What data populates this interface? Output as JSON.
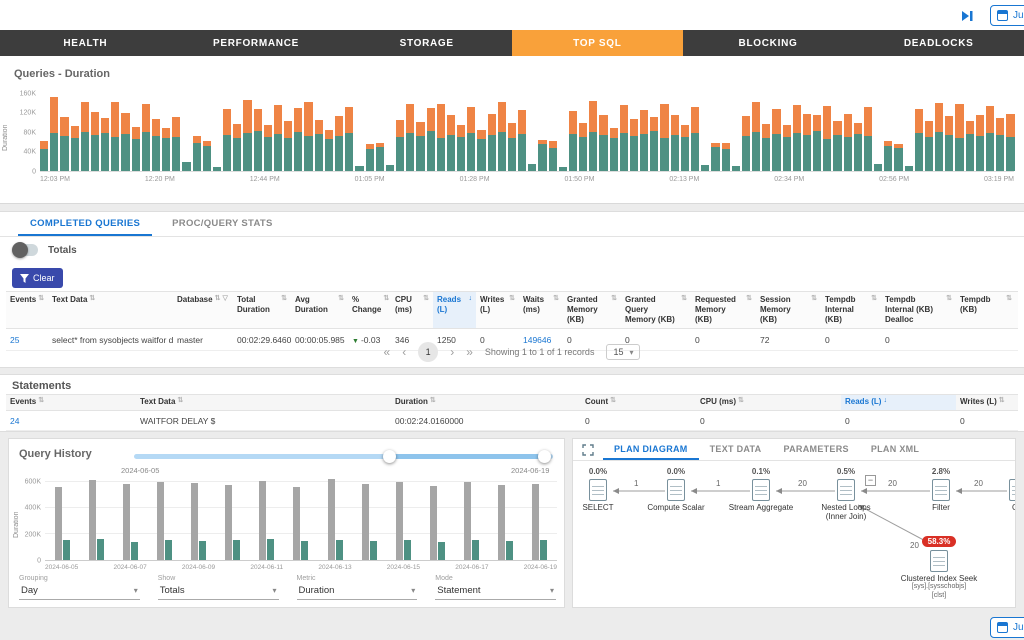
{
  "icons": {
    "sort_icon": "⇅",
    "sorted_icon": "↓",
    "filter_icon": "▽",
    "caret_icon": "▾",
    "minus_icon": "−",
    "change_down_icon": "▼"
  },
  "topbar": {
    "date_button_label": "Jun"
  },
  "nav": {
    "tabs": [
      "HEALTH",
      "PERFORMANCE",
      "STORAGE",
      "TOP SQL",
      "BLOCKING",
      "DEADLOCKS"
    ],
    "active_tab": "TOP SQL"
  },
  "duration_chart": {
    "type": "bar",
    "title": "Queries - Duration",
    "ylabel": "Duration",
    "y_ticks": [
      "160K",
      "120K",
      "80K",
      "40K",
      "0"
    ],
    "x_ticks": [
      "12:03 PM",
      "12:20 PM",
      "12:44 PM",
      "01:05 PM",
      "01:28 PM",
      "01:50 PM",
      "02:13 PM",
      "02:34 PM",
      "02:56 PM",
      "03:19 PM"
    ],
    "ymax_k": 176,
    "series": [
      {
        "name": "series-1",
        "color": "#4e9183",
        "values": [
          45,
          78,
          72,
          68,
          80,
          74,
          79,
          70,
          76,
          66,
          81,
          73,
          69,
          71,
          18,
          58,
          52,
          8,
          74,
          68,
          79,
          83,
          71,
          76,
          69,
          80,
          73,
          77,
          66,
          72,
          78,
          10,
          45,
          50,
          12,
          70,
          79,
          73,
          82,
          68,
          75,
          71,
          78,
          66,
          74,
          80,
          69,
          76,
          15,
          55,
          48,
          9,
          77,
          70,
          81,
          74,
          68,
          79,
          72,
          76,
          83,
          69,
          75,
          71,
          78,
          12,
          50,
          46,
          10,
          73,
          80,
          68,
          76,
          71,
          79,
          74,
          82,
          67,
          75,
          70,
          77,
          72,
          14,
          52,
          47,
          11,
          78,
          71,
          80,
          74,
          69,
          76,
          72,
          79,
          75,
          70
        ]
      },
      {
        "name": "series-2",
        "color": "#ef8445",
        "values": [
          18,
          75,
          40,
          25,
          62,
          48,
          30,
          72,
          45,
          25,
          58,
          35,
          20,
          40,
          0,
          15,
          10,
          0,
          55,
          30,
          68,
          45,
          25,
          60,
          35,
          50,
          70,
          28,
          18,
          42,
          55,
          0,
          12,
          8,
          0,
          35,
          60,
          28,
          48,
          70,
          40,
          25,
          55,
          18,
          45,
          62,
          30,
          50,
          0,
          10,
          14,
          0,
          48,
          30,
          65,
          42,
          22,
          58,
          36,
          50,
          28,
          70,
          40,
          25,
          55,
          0,
          8,
          12,
          0,
          40,
          62,
          30,
          52,
          25,
          58,
          45,
          35,
          68,
          28,
          48,
          22,
          60,
          0,
          11,
          9,
          0,
          50,
          32,
          60,
          40,
          70,
          28,
          45,
          55,
          35,
          48
        ]
      }
    ]
  },
  "queries_section": {
    "tabs": [
      "COMPLETED QUERIES",
      "PROC/QUERY STATS"
    ],
    "active_tab": "COMPLETED QUERIES",
    "totals_label": "Totals",
    "clear_button": "Clear"
  },
  "completed_table": {
    "columns": [
      "Events",
      "Text Data",
      "Database",
      "Total Duration",
      "Avg Duration",
      "% Change",
      "CPU (ms)",
      "Reads (L)",
      "Writes (L)",
      "Waits (ms)",
      "Granted Memory (KB)",
      "Granted Query Memory (KB)",
      "Requested Memory (KB)",
      "Session Memory (KB)",
      "Tempdb Internal (KB)",
      "Tempdb Internal (KB) Dealloc",
      "Tempdb (KB)"
    ],
    "sorted_col": 7,
    "funnel_col": 2,
    "change_col": 5,
    "link_cells": [
      0,
      9
    ],
    "row": [
      "25",
      "select* from sysobjects waitfor delay $",
      "master",
      "00:02:29.6460000",
      "00:00:05.985",
      "-0.03",
      "346",
      "1250",
      "0",
      "149646",
      "0",
      "0",
      "0",
      "72",
      "0",
      "0",
      ""
    ]
  },
  "pagination": {
    "first_label": "«",
    "prev_label": "‹",
    "page": "1",
    "next_label": "›",
    "last_label": "»",
    "showing_text": "Showing 1 to 1 of 1 records",
    "page_size": "15"
  },
  "statements": {
    "title": "Statements",
    "columns": [
      "Events",
      "Text Data",
      "Duration",
      "Count",
      "CPU (ms)",
      "Reads (L)",
      "Writes (L)"
    ],
    "sorted_col": 5,
    "link_cells": [
      0
    ],
    "row": [
      "24",
      "WAITFOR DELAY $",
      "00:02:24.0160000",
      "0",
      "0",
      "0",
      "0"
    ]
  },
  "query_history": {
    "title": "Query History",
    "range_start": "2024-06-05",
    "range_end": "2024-06-19",
    "chart_data": {
      "type": "bar",
      "ylabel": "Duration",
      "y_ticks": [
        "600K",
        "400K",
        "200K",
        "0"
      ],
      "ymax_k": 650,
      "categories": [
        "2024-06-05",
        "2024-06-06",
        "2024-06-07",
        "2024-06-08",
        "2024-06-09",
        "2024-06-10",
        "2024-06-11",
        "2024-06-12",
        "2024-06-13",
        "2024-06-14",
        "2024-06-15",
        "2024-06-16",
        "2024-06-17",
        "2024-06-18",
        "2024-06-19"
      ],
      "x_ticks": [
        "2024-06-05",
        "2024-06-07",
        "2024-06-09",
        "2024-06-11",
        "2024-06-13",
        "2024-06-15",
        "2024-06-17",
        "2024-06-19"
      ],
      "series": [
        {
          "name": "series-1",
          "color": "#a6a6a6",
          "values": [
            560,
            615,
            580,
            600,
            590,
            570,
            605,
            560,
            620,
            580,
            595,
            565,
            600,
            570,
            585
          ]
        },
        {
          "name": "series-2",
          "color": "#4e9183",
          "values": [
            150,
            160,
            140,
            155,
            145,
            150,
            158,
            142,
            152,
            147,
            150,
            140,
            156,
            146,
            150
          ]
        }
      ]
    },
    "dropdowns": [
      {
        "label": "Grouping",
        "value": "Day"
      },
      {
        "label": "Show",
        "value": "Totals"
      },
      {
        "label": "Metric",
        "value": "Duration"
      },
      {
        "label": "Mode",
        "value": "Statement"
      }
    ]
  },
  "plan": {
    "tabs": [
      "PLAN DIAGRAM",
      "TEXT DATA",
      "PARAMETERS",
      "PLAN XML"
    ],
    "active_tab": "PLAN DIAGRAM",
    "nodes": [
      {
        "pct": "0.0%",
        "label": "SELECT"
      },
      {
        "pct": "0.0%",
        "label": "Compute Scalar"
      },
      {
        "pct": "0.1%",
        "label": "Stream Aggregate"
      },
      {
        "pct": "0.5%",
        "label": "Nested Loops",
        "label2": "(Inner Join)"
      },
      {
        "pct": "2.8%",
        "label": "Filter"
      },
      {
        "pct": "",
        "label": "Clu"
      },
      {
        "pct": "58.3%",
        "label": "Clustered Index Seek",
        "sub1": "[sys].[sysschobjs]",
        "sub2": "[clst]"
      }
    ],
    "edge_labels": [
      "1",
      "1",
      "20",
      "20",
      "20",
      "20"
    ]
  }
}
